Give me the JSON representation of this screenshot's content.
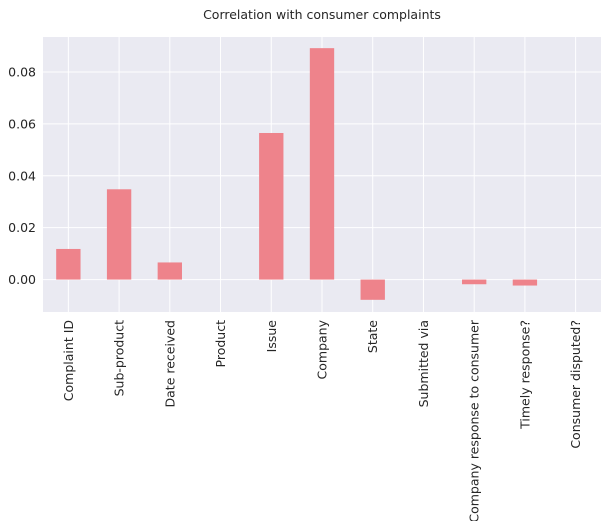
{
  "chart_data": {
    "type": "bar",
    "title": "Correlation with consumer complaints",
    "xlabel": "",
    "ylabel": "",
    "categories": [
      "Complaint ID",
      "Sub-product",
      "Date received",
      "Product",
      "Issue",
      "Company",
      "State",
      "Submitted via",
      "Company response to consumer",
      "Timely response?",
      "Consumer disputed?"
    ],
    "values": [
      0.0118,
      0.0348,
      0.0066,
      0.0,
      0.0565,
      0.0892,
      -0.0078,
      0.0,
      -0.0018,
      -0.0023,
      0.0
    ],
    "ylim": [
      -0.0125,
      0.0935
    ],
    "yticks": [
      "0.00",
      "0.02",
      "0.04",
      "0.06",
      "0.08"
    ],
    "ytick_values": [
      0.0,
      0.02,
      0.04,
      0.06,
      0.08
    ],
    "grid": true,
    "colors": {
      "bar": "#ee838b",
      "background": "#eaeaf2",
      "grid": "#ffffff",
      "text": "#262626"
    }
  }
}
